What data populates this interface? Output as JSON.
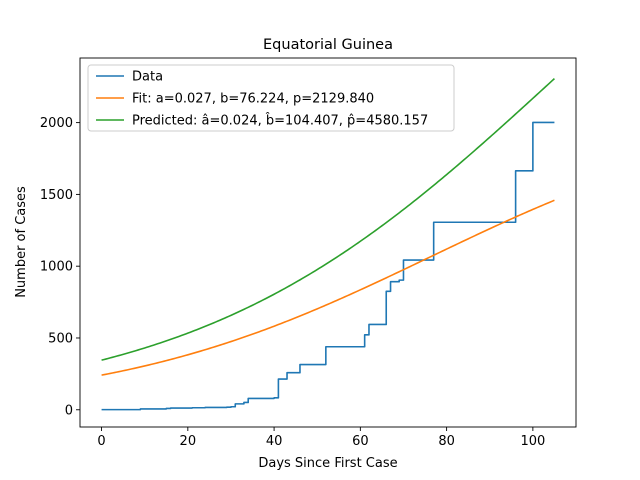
{
  "chart_data": {
    "type": "line",
    "title": "Equatorial Guinea",
    "xlabel": "Days Since First Case",
    "ylabel": "Number of Cases",
    "xlim": [
      -5,
      110
    ],
    "ylim": [
      -120,
      2450
    ],
    "xticks": [
      0,
      20,
      40,
      60,
      80,
      100
    ],
    "yticks": [
      0,
      500,
      1000,
      1500,
      2000
    ],
    "grid": false,
    "legend_position": "upper-left",
    "series": [
      {
        "name": "Data",
        "color": "#1f77b4",
        "style": "step",
        "x": [
          0,
          9,
          15,
          16,
          21,
          24,
          29,
          30,
          31,
          32,
          33,
          34,
          35,
          36,
          37,
          40,
          41,
          42,
          43,
          44,
          45,
          46,
          47,
          48,
          49,
          50,
          51,
          52,
          53,
          54,
          55,
          56,
          57,
          58,
          59,
          60,
          61,
          62,
          63,
          64,
          65,
          66,
          67,
          68,
          69,
          70,
          71,
          72,
          73,
          74,
          75,
          76,
          77,
          95,
          96,
          97,
          98,
          99,
          100,
          101,
          105
        ],
        "y": [
          1,
          6,
          9,
          12,
          14,
          16,
          18,
          21,
          41,
          41,
          51,
          79,
          79,
          79,
          79,
          83,
          214,
          214,
          258,
          258,
          258,
          315,
          315,
          315,
          315,
          315,
          315,
          439,
          439,
          439,
          439,
          439,
          439,
          439,
          439,
          439,
          522,
          594,
          594,
          594,
          594,
          825,
          892,
          892,
          903,
          1043,
          1043,
          1043,
          1043,
          1043,
          1043,
          1043,
          1306,
          1306,
          1664,
          1664,
          1664,
          1664,
          2001,
          2001,
          2001
        ]
      },
      {
        "name": "Fit: a=0.027, b=76.224, p=2129.840",
        "color": "#ff7f0e",
        "style": "logistic",
        "params": {
          "a": 0.027,
          "b": 76.224,
          "p": 2129.84
        },
        "x_range": [
          0,
          105
        ]
      },
      {
        "name": "Predicted: â=0.024, b̂=104.407, p̂=4580.157",
        "color": "#2ca02c",
        "style": "logistic",
        "params": {
          "a": 0.024,
          "b": 104.407,
          "p": 4580.157
        },
        "x_range": [
          0,
          105
        ]
      }
    ]
  }
}
